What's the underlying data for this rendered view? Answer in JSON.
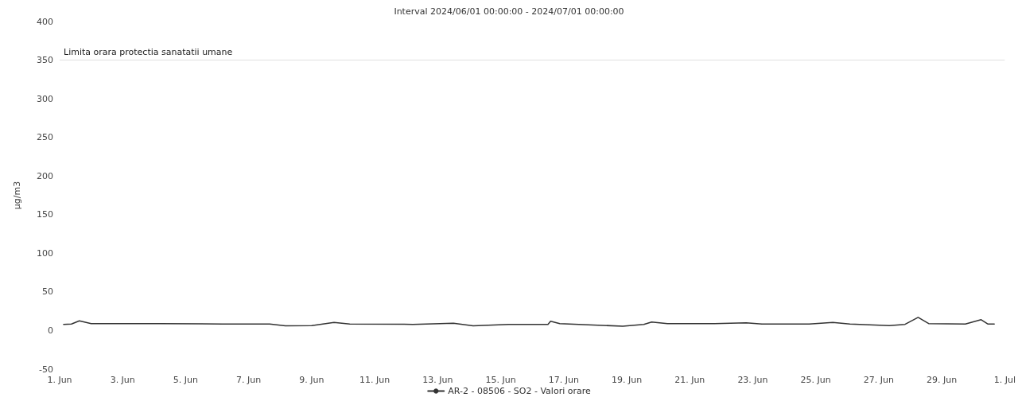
{
  "chart_data": {
    "type": "line",
    "title": "Interval 2024/06/01 00:00:00 - 2024/07/01 00:00:00",
    "ylabel": "µg/m3",
    "x": [
      "2024-06-01T03:00",
      "2024-06-01T09:00",
      "2024-06-01T15:00",
      "2024-06-02T00:00",
      "2024-06-04T04:00",
      "2024-06-06T04:00",
      "2024-06-07T16:00",
      "2024-06-08T04:00",
      "2024-06-09T00:00",
      "2024-06-09T17:00",
      "2024-06-10T05:00",
      "2024-06-12T05:00",
      "2024-06-13T12:00",
      "2024-06-14T03:00",
      "2024-06-15T06:00",
      "2024-06-16T12:00",
      "2024-06-16T14:00",
      "2024-06-16T21:00",
      "2024-06-18T02:00",
      "2024-06-18T21:00",
      "2024-06-19T13:00",
      "2024-06-19T19:00",
      "2024-06-20T07:00",
      "2024-06-21T19:00",
      "2024-06-22T19:00",
      "2024-06-23T07:00",
      "2024-06-24T19:00",
      "2024-06-25T13:00",
      "2024-06-26T02:00",
      "2024-06-27T08:00",
      "2024-06-27T20:00",
      "2024-06-28T06:00",
      "2024-06-28T14:00",
      "2024-06-29T18:00",
      "2024-06-30T06:00",
      "2024-06-30T11:00",
      "2024-06-30T16:00"
    ],
    "series": [
      {
        "name": "AR-2 - 08506 - SO2 - Valori orare",
        "color": "#333333",
        "values": [
          8,
          8.5,
          12.5,
          9,
          9,
          8.5,
          8.5,
          6,
          6.5,
          10.5,
          8.5,
          8,
          9.5,
          6,
          8,
          8,
          12,
          9,
          7,
          5.5,
          8,
          11,
          9,
          9,
          10,
          8.5,
          8.5,
          10.5,
          8.5,
          6.5,
          8,
          17,
          9,
          8.5,
          14,
          8.5,
          8.5
        ]
      }
    ],
    "xlim": [
      "2024-06-01",
      "2024-07-01"
    ],
    "xticks": [
      {
        "value": "2024-06-01",
        "label": "1. Jun"
      },
      {
        "value": "2024-06-03",
        "label": "3. Jun"
      },
      {
        "value": "2024-06-05",
        "label": "5. Jun"
      },
      {
        "value": "2024-06-07",
        "label": "7. Jun"
      },
      {
        "value": "2024-06-09",
        "label": "9. Jun"
      },
      {
        "value": "2024-06-11",
        "label": "11. Jun"
      },
      {
        "value": "2024-06-13",
        "label": "13. Jun"
      },
      {
        "value": "2024-06-15",
        "label": "15. Jun"
      },
      {
        "value": "2024-06-17",
        "label": "17. Jun"
      },
      {
        "value": "2024-06-19",
        "label": "19. Jun"
      },
      {
        "value": "2024-06-21",
        "label": "21. Jun"
      },
      {
        "value": "2024-06-23",
        "label": "23. Jun"
      },
      {
        "value": "2024-06-25",
        "label": "25. Jun"
      },
      {
        "value": "2024-06-27",
        "label": "27. Jun"
      },
      {
        "value": "2024-06-29",
        "label": "29. Jun"
      },
      {
        "value": "2024-07-01",
        "label": "1. Jul"
      }
    ],
    "ylim": [
      -50,
      400
    ],
    "yticks": [
      -50,
      0,
      50,
      100,
      150,
      200,
      250,
      300,
      350,
      400
    ],
    "ref_lines": [
      {
        "axis": "y",
        "value": 350,
        "label": "Limita orara protectia sanatatii umane",
        "color": "#e0e0e0"
      }
    ],
    "legend": "bottom",
    "marker": "none",
    "line_style": "solid",
    "grid": false
  }
}
